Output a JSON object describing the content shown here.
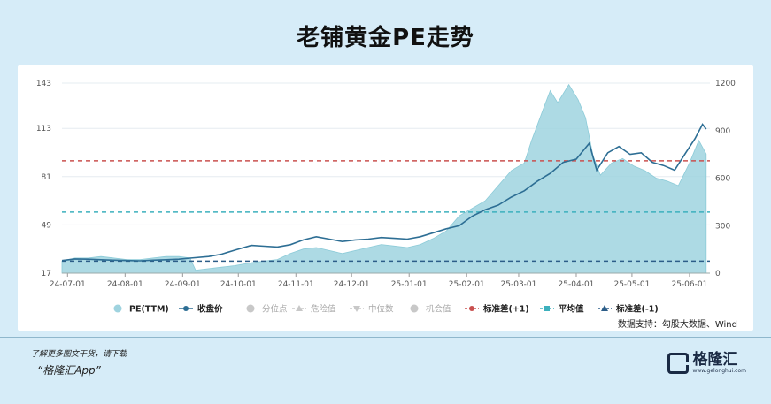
{
  "title": "老铺黄金PE走势",
  "source": "数据支持：勾股大数据、Wind",
  "promo": {
    "line1": "了解更多图文干货，请下载",
    "line2": "“格隆汇App”"
  },
  "logo": {
    "name": "格隆汇",
    "url": "www.gelonghui.com"
  },
  "chart_data": {
    "type": "area",
    "left_axis": {
      "ticks": [
        17,
        49,
        81,
        113,
        143
      ],
      "range": [
        17,
        143
      ]
    },
    "right_axis": {
      "ticks": [
        0,
        300,
        600,
        900,
        1200
      ],
      "range": [
        0,
        1200
      ]
    },
    "x_ticks": [
      "24-07-01",
      "24-08-01",
      "24-09-01",
      "24-10-01",
      "24-11-01",
      "24-12-01",
      "25-01-01",
      "25-02-01",
      "25-03-01",
      "25-04-01",
      "25-05-01",
      "25-06-01"
    ],
    "x_range": [
      "2024-06-28",
      "2025-06-12"
    ],
    "legend": [
      "PE(TTM)",
      "收盘价",
      "分位点",
      "危险值",
      "中位数",
      "机会值",
      "标准差(+1)",
      "平均值",
      "标准差(-1)"
    ],
    "reference_lines": {
      "std_plus_1": 91.5,
      "mean": 57.5,
      "std_minus_1": 25
    },
    "colors": {
      "pe_fill": "#9fd3df",
      "price": "#2d6e94",
      "std_plus": "#c9504f",
      "mean": "#3db0bd",
      "std_minus": "#2c5d88"
    },
    "pe_ttm": [
      [
        "2024-06-28",
        25
      ],
      [
        "2024-07-05",
        27
      ],
      [
        "2024-07-12",
        27
      ],
      [
        "2024-07-19",
        28
      ],
      [
        "2024-07-26",
        27
      ],
      [
        "2024-08-02",
        26
      ],
      [
        "2024-08-09",
        26
      ],
      [
        "2024-08-16",
        27
      ],
      [
        "2024-08-23",
        28
      ],
      [
        "2024-08-30",
        28
      ],
      [
        "2024-09-05",
        27
      ],
      [
        "2024-09-08",
        19
      ],
      [
        "2024-09-15",
        20
      ],
      [
        "2024-09-22",
        21
      ],
      [
        "2024-09-29",
        22
      ],
      [
        "2024-10-08",
        24
      ],
      [
        "2024-10-15",
        25
      ],
      [
        "2024-10-22",
        26
      ],
      [
        "2024-10-29",
        30
      ],
      [
        "2024-11-05",
        33
      ],
      [
        "2024-11-12",
        34
      ],
      [
        "2024-11-19",
        32
      ],
      [
        "2024-11-26",
        30
      ],
      [
        "2024-12-03",
        32
      ],
      [
        "2024-12-10",
        34
      ],
      [
        "2024-12-17",
        36
      ],
      [
        "2024-12-24",
        35
      ],
      [
        "2024-12-31",
        34
      ],
      [
        "2025-01-07",
        36
      ],
      [
        "2025-01-14",
        40
      ],
      [
        "2025-01-21",
        45
      ],
      [
        "2025-01-28",
        55
      ],
      [
        "2025-02-04",
        60
      ],
      [
        "2025-02-11",
        65
      ],
      [
        "2025-02-18",
        75
      ],
      [
        "2025-02-25",
        85
      ],
      [
        "2025-03-04",
        90
      ],
      [
        "2025-03-08",
        105
      ],
      [
        "2025-03-14",
        125
      ],
      [
        "2025-03-18",
        138
      ],
      [
        "2025-03-22",
        130
      ],
      [
        "2025-03-28",
        142
      ],
      [
        "2025-04-02",
        132
      ],
      [
        "2025-04-06",
        120
      ],
      [
        "2025-04-10",
        95
      ],
      [
        "2025-04-14",
        82
      ],
      [
        "2025-04-20",
        90
      ],
      [
        "2025-04-26",
        93
      ],
      [
        "2025-05-02",
        88
      ],
      [
        "2025-05-08",
        85
      ],
      [
        "2025-05-14",
        80
      ],
      [
        "2025-05-20",
        78
      ],
      [
        "2025-05-26",
        75
      ],
      [
        "2025-06-01",
        90
      ],
      [
        "2025-06-06",
        105
      ],
      [
        "2025-06-10",
        96
      ]
    ],
    "close_price": [
      [
        "2024-06-28",
        80
      ],
      [
        "2024-07-05",
        90
      ],
      [
        "2024-07-12",
        88
      ],
      [
        "2024-07-19",
        85
      ],
      [
        "2024-07-26",
        82
      ],
      [
        "2024-08-02",
        80
      ],
      [
        "2024-08-09",
        78
      ],
      [
        "2024-08-16",
        82
      ],
      [
        "2024-08-23",
        85
      ],
      [
        "2024-08-30",
        88
      ],
      [
        "2024-09-05",
        95
      ],
      [
        "2024-09-15",
        105
      ],
      [
        "2024-09-22",
        120
      ],
      [
        "2024-09-29",
        145
      ],
      [
        "2024-10-08",
        175
      ],
      [
        "2024-10-15",
        170
      ],
      [
        "2024-10-22",
        165
      ],
      [
        "2024-10-29",
        180
      ],
      [
        "2024-11-05",
        210
      ],
      [
        "2024-11-12",
        230
      ],
      [
        "2024-11-19",
        215
      ],
      [
        "2024-11-26",
        200
      ],
      [
        "2024-12-03",
        210
      ],
      [
        "2024-12-10",
        215
      ],
      [
        "2024-12-17",
        225
      ],
      [
        "2024-12-24",
        220
      ],
      [
        "2024-12-31",
        215
      ],
      [
        "2025-01-07",
        230
      ],
      [
        "2025-01-14",
        255
      ],
      [
        "2025-01-21",
        280
      ],
      [
        "2025-01-28",
        300
      ],
      [
        "2025-02-04",
        360
      ],
      [
        "2025-02-11",
        400
      ],
      [
        "2025-02-18",
        430
      ],
      [
        "2025-02-25",
        480
      ],
      [
        "2025-03-04",
        520
      ],
      [
        "2025-03-11",
        580
      ],
      [
        "2025-03-18",
        630
      ],
      [
        "2025-03-25",
        700
      ],
      [
        "2025-04-01",
        720
      ],
      [
        "2025-04-08",
        820
      ],
      [
        "2025-04-12",
        650
      ],
      [
        "2025-04-18",
        760
      ],
      [
        "2025-04-24",
        800
      ],
      [
        "2025-04-30",
        750
      ],
      [
        "2025-05-06",
        760
      ],
      [
        "2025-05-12",
        700
      ],
      [
        "2025-05-18",
        680
      ],
      [
        "2025-05-24",
        650
      ],
      [
        "2025-05-30",
        760
      ],
      [
        "2025-06-04",
        850
      ],
      [
        "2025-06-08",
        940
      ],
      [
        "2025-06-10",
        910
      ]
    ]
  }
}
